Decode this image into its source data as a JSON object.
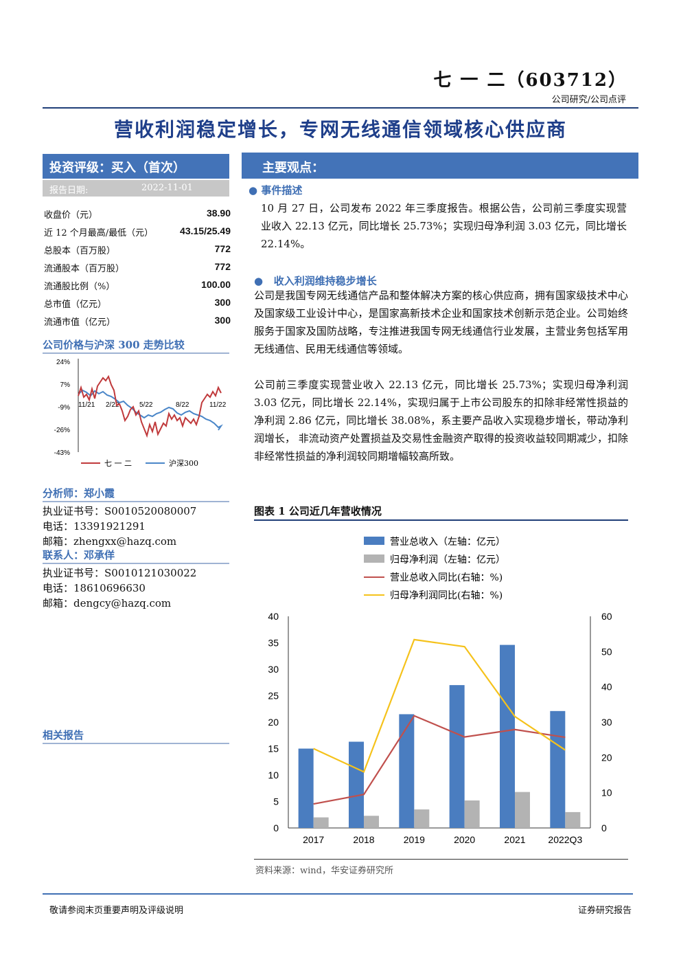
{
  "header": {
    "company": "七 一 二（603712）",
    "subtitle": "公司研究/公司点评"
  },
  "main_title": "营收利润稳定增长，专网无线通信领域核心供应商",
  "rating": {
    "label": "投资评级：买入（首次）",
    "date_label": "报告日期:",
    "date_value": "2022-11-01"
  },
  "stats": [
    {
      "label": "收盘价（元）",
      "value": "38.90"
    },
    {
      "label": "近 12 个月最高/最低（元）",
      "value": "43.15/25.49"
    },
    {
      "label": "总股本（百万股）",
      "value": "772"
    },
    {
      "label": "流通股本（百万股）",
      "value": "772"
    },
    {
      "label": "流通股比例（%）",
      "value": "100.00"
    },
    {
      "label": "总市值（亿元）",
      "value": "300"
    },
    {
      "label": "流通市值（亿元）",
      "value": "300"
    }
  ],
  "price_chart": {
    "title": "公司价格与沪深 300 走势比较",
    "y_ticks": [
      "24%",
      "7%",
      "-9%",
      "-26%",
      "-43%"
    ],
    "x_ticks": [
      "11/21",
      "2/22",
      "5/22",
      "8/22",
      "11/22"
    ],
    "legend": [
      "七 一 二",
      "沪深300"
    ],
    "colors": {
      "stock": "#c0393b",
      "index": "#4a86c8"
    }
  },
  "analyst": {
    "title": "分析师：郑小霞",
    "cert": "执业证书号：S0010520080007",
    "phone": "电话：13391921291",
    "email": "邮箱：zhengxx@hazq.com"
  },
  "contact": {
    "title": "联系人：邓承佯",
    "cert": "执业证书号：S0010121030022",
    "phone": "电话：18610696630",
    "email": "邮箱：dengcy@hazq.com"
  },
  "related": {
    "title": "相关报告"
  },
  "main_points": {
    "title": "主要观点：",
    "event_title": "事件描述",
    "event_text": "10 月 27 日，公司发布 2022 年三季度报告。根据公告，公司前三季度实现营业收入 22.13 亿元，同比增长 25.73%；实现归母净利润 3.03 亿元，同比增长 22.14%。",
    "growth_title": "收入利润维持稳步增长",
    "para1": "公司是我国专网无线通信产品和整体解决方案的核心供应商，拥有国家级技术中心及国家级工业设计中心，是国家高新技术企业和国家技术创新示范企业。公司始终服务于国家及国防战略，专注推进我国专网无线通信行业发展，主营业务包括军用无线通信、民用无线通信等领域。",
    "para2": "公司前三季度实现营业收入 22.13 亿元，同比增长 25.73%；实现归母净利润 3.03 亿元，同比增长 22.14%，实现归属于上市公司股东的扣除非经常性损益的净利润 2.86 亿元，同比增长 38.08%，系主要产品收入实现稳步增长，带动净利润增长， 非流动资产处置损益及交易性金融资产取得的投资收益较同期减少，扣除非经常性损益的净利润较同期增幅较高所致。"
  },
  "figure": {
    "title": "图表 1 公司近几年营收情况",
    "source": "资料来源：wind，华安证券研究所"
  },
  "chart_data": {
    "type": "bar",
    "categories": [
      "2017",
      "2018",
      "2019",
      "2020",
      "2021",
      "2022Q3"
    ],
    "series": [
      {
        "name": "营业总收入（左轴：亿元）",
        "axis": "left",
        "kind": "bar",
        "color": "#4a7dc0",
        "values": [
          15.0,
          16.3,
          21.5,
          27.0,
          34.6,
          22.1
        ]
      },
      {
        "name": "归母净利润（左轴：亿元）",
        "axis": "left",
        "kind": "bar",
        "color": "#b3b3b3",
        "values": [
          2.0,
          2.3,
          3.5,
          5.2,
          6.8,
          3.0
        ]
      },
      {
        "name": "营业总收入同比(右轴：%)",
        "axis": "right",
        "kind": "line",
        "color": "#c0504d",
        "values": [
          6.8,
          9.5,
          31.8,
          25.8,
          27.9,
          25.7
        ]
      },
      {
        "name": "归母净利润同比(右轴：%)",
        "axis": "right",
        "kind": "line",
        "color": "#f5c21b",
        "values": [
          22.5,
          15.9,
          53.4,
          51.4,
          31.6,
          22.1
        ]
      }
    ],
    "y_left": {
      "range": [
        0,
        40
      ],
      "ticks": [
        "0",
        "5",
        "10",
        "15",
        "20",
        "25",
        "30",
        "35",
        "40"
      ]
    },
    "y_right": {
      "range": [
        0,
        60
      ],
      "ticks": [
        "0",
        "10",
        "20",
        "30",
        "40",
        "50",
        "60"
      ]
    },
    "x_tick_labels": [
      "2017",
      "2018",
      "2019",
      "2020",
      "2021",
      "2022Q3"
    ],
    "legend_position": "top"
  },
  "footer": {
    "left": "敬请参阅末页重要声明及评级说明",
    "right": "证券研究报告"
  }
}
